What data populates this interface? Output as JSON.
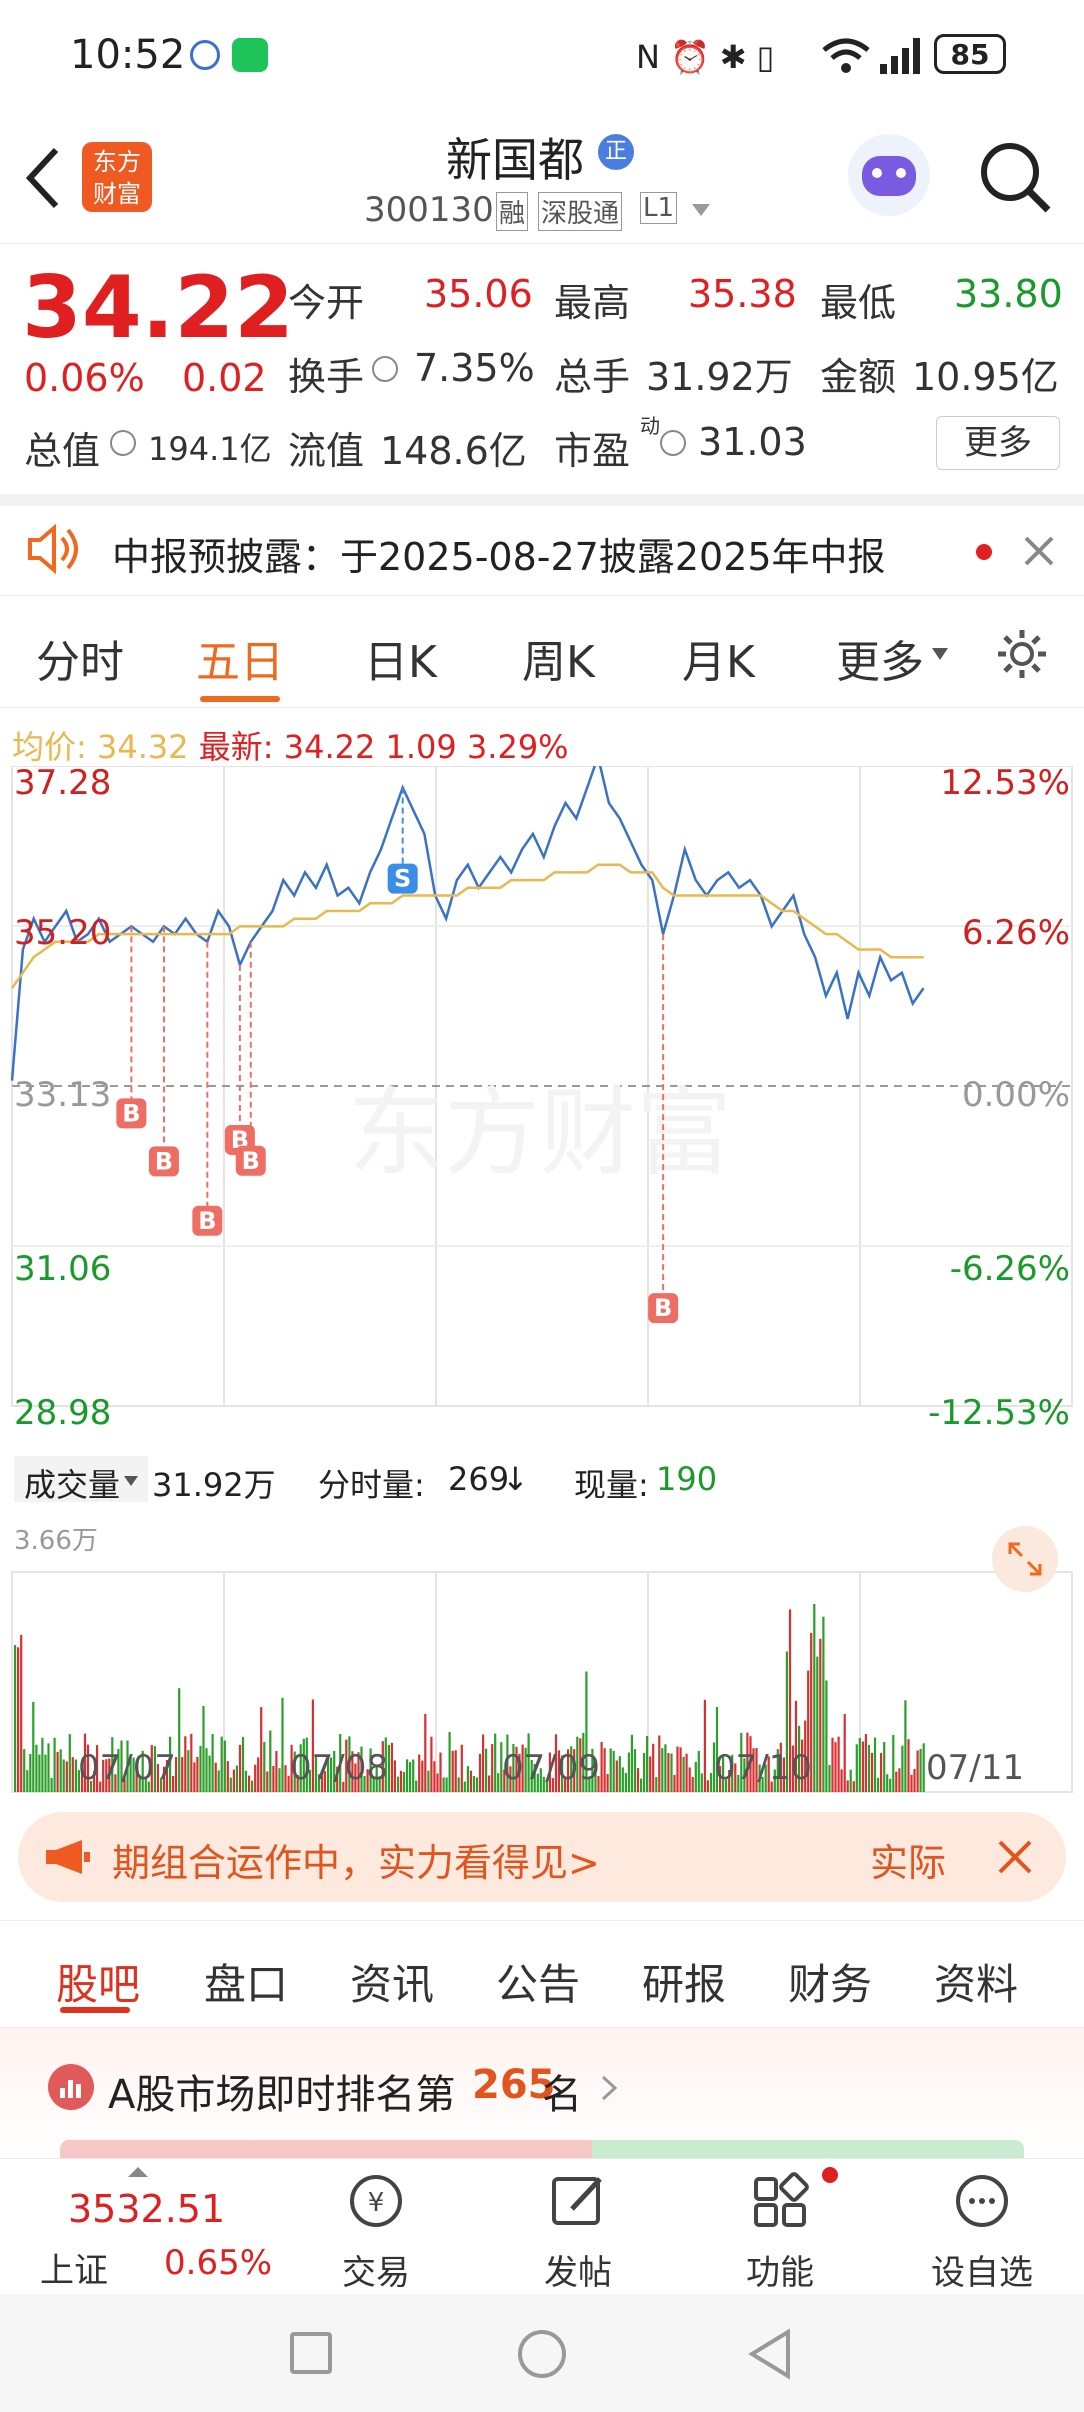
{
  "status": {
    "time": "10:52",
    "battery": "85"
  },
  "header": {
    "logo_line1": "东方",
    "logo_line2": "财富",
    "name": "新国都",
    "name_badge": "正",
    "code": "300130",
    "tag_rong": "融",
    "tag_sgt": "深股通",
    "tag_level": "L1"
  },
  "quote": {
    "price": "34.22",
    "change_pct": "0.06%",
    "change_amt": "0.02",
    "open_label": "今开",
    "open": "35.06",
    "high_label": "最高",
    "high": "35.38",
    "low_label": "最低",
    "low": "33.80",
    "turnover_label": "换手",
    "turnover": "7.35%",
    "volume_label": "总手",
    "volume": "31.92万",
    "amount_label": "金额",
    "amount": "10.95亿",
    "mktcap_label": "总值",
    "mktcap": "194.1亿",
    "float_label": "流值",
    "float": "148.6亿",
    "pe_label": "市盈",
    "pe_sup": "动",
    "pe": "31.03",
    "more": "更多"
  },
  "notice": {
    "text": "中报预披露：于2025-08-27披露2025年中报"
  },
  "tabs": {
    "items": [
      "分时",
      "五日",
      "日K",
      "周K",
      "月K",
      "更多"
    ],
    "active": 1
  },
  "chart_info": {
    "avg_label": "均价:",
    "avg": "34.32",
    "last_label": "最新:",
    "last": "34.22",
    "chg": "1.09",
    "chg_pct": "3.29%"
  },
  "chart_data": {
    "type": "line",
    "y_left": [
      "37.28",
      "35.20",
      "33.13",
      "31.06",
      "28.98"
    ],
    "y_right": [
      "12.53%",
      "6.26%",
      "0.00%",
      "-6.26%",
      "-12.53%"
    ],
    "x_labels": [
      "07/07",
      "07/08",
      "07/09",
      "07/10",
      "07/11"
    ],
    "ylim": [
      28.98,
      37.28
    ],
    "prev_close": 33.13,
    "series": [
      {
        "values": [
          33.2,
          34.9,
          35.3,
          35.0,
          35.2,
          35.4,
          35.0,
          35.1,
          35.3,
          35.0,
          35.1,
          35.2,
          35.1,
          35.0,
          35.2,
          35.1,
          35.3,
          35.1,
          35.0,
          35.4,
          35.2,
          34.7,
          35.0,
          35.2,
          35.4,
          35.8,
          35.6,
          35.9,
          35.7,
          36.0,
          35.6,
          35.7,
          35.5,
          35.9,
          36.2,
          36.6,
          37.0,
          36.7,
          36.4,
          35.6,
          35.3,
          35.8,
          36.0,
          35.7,
          35.9,
          36.1,
          35.9,
          36.2,
          36.4,
          36.1,
          36.5,
          36.8,
          36.6,
          37.0,
          37.4,
          36.8,
          36.6,
          36.3,
          36.0,
          35.8,
          35.1,
          35.6,
          36.2,
          35.8,
          35.6,
          35.8,
          35.9,
          35.7,
          35.8,
          35.6,
          35.2,
          35.4,
          35.6,
          35.1,
          34.8,
          34.3,
          34.6,
          34.0,
          34.6,
          34.3,
          34.8,
          34.5,
          34.6,
          34.2,
          34.4
        ]
      }
    ],
    "avg_series": [
      {
        "values": [
          34.4,
          34.6,
          34.8,
          34.9,
          35.0,
          35.0,
          35.0,
          35.0,
          35.1,
          35.1,
          35.1,
          35.1,
          35.1,
          35.1,
          35.1,
          35.1,
          35.1,
          35.1,
          35.1,
          35.1,
          35.1,
          35.2,
          35.2,
          35.2,
          35.2,
          35.2,
          35.3,
          35.3,
          35.3,
          35.4,
          35.4,
          35.4,
          35.4,
          35.5,
          35.5,
          35.5,
          35.6,
          35.6,
          35.6,
          35.6,
          35.6,
          35.6,
          35.7,
          35.7,
          35.7,
          35.7,
          35.8,
          35.8,
          35.8,
          35.8,
          35.9,
          35.9,
          35.9,
          35.9,
          36.0,
          36.0,
          36.0,
          35.9,
          35.9,
          35.9,
          35.7,
          35.6,
          35.6,
          35.6,
          35.6,
          35.6,
          35.6,
          35.6,
          35.6,
          35.6,
          35.5,
          35.4,
          35.4,
          35.3,
          35.2,
          35.1,
          35.1,
          35.0,
          34.9,
          34.9,
          34.9,
          34.8,
          34.8,
          34.8,
          34.8
        ]
      }
    ],
    "markers": [
      "B",
      "B",
      "B",
      "B",
      "B",
      "S",
      "B"
    ],
    "volume_label": "成交量",
    "volume_total": "31.92万",
    "tick_vol_label": "分时量:",
    "tick_vol": "269",
    "tick_vol_arrow": "↓",
    "now_vol_label": "现量:",
    "now_vol": "190",
    "vol_max": "3.66万"
  },
  "ad": {
    "text": "期组合运作中，实力看得见>",
    "link": "实际"
  },
  "subtabs": {
    "items": [
      "股吧",
      "盘口",
      "资讯",
      "公告",
      "研报",
      "财务",
      "资料"
    ],
    "active": 0
  },
  "rank": {
    "prefix": "A股市场即时排名第",
    "num": "265",
    "suffix": "名"
  },
  "bottom": {
    "index_value": "3532.51",
    "index_name": "上证",
    "index_pct": "0.65%",
    "nav": [
      "交易",
      "发帖",
      "功能",
      "设自选"
    ]
  },
  "colors": {
    "up": "#e02020",
    "down": "#1a9a2a",
    "accent": "#ef6a1f",
    "line": "#3a72c4",
    "avg": "#e9b84e"
  }
}
